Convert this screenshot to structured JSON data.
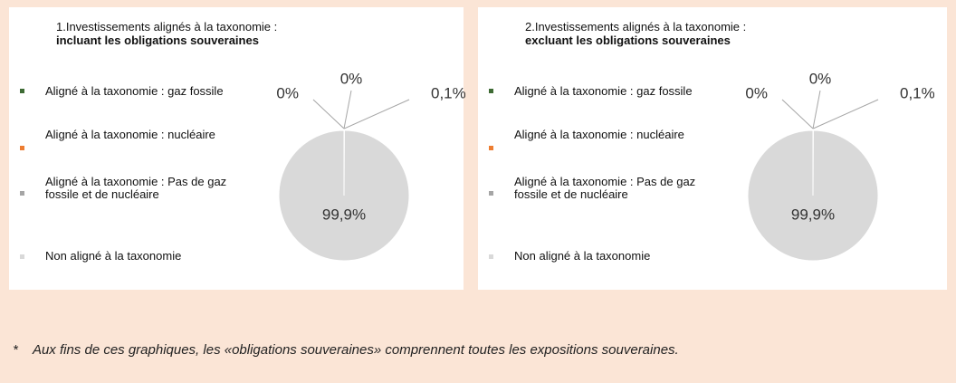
{
  "chart_data": [
    {
      "type": "pie",
      "title": "1.Investissements alignés à la taxonomie :",
      "subtitle": "incluant les obligations souveraines",
      "categories": [
        "Aligné à la taxonomie : gaz fossile",
        "Aligné à la taxonomie : nucléaire",
        "Aligné à la taxonomie : Pas de gaz fossile et de nucléaire",
        "Non aligné à la taxonomie"
      ],
      "values": [
        0,
        0,
        0.1,
        99.9
      ],
      "value_labels": [
        "0%",
        "0%",
        "0,1%",
        "99,9%"
      ],
      "colors": [
        "#3e6b34",
        "#ed7d31",
        "#a5a5a5",
        "#d9d9d9"
      ]
    },
    {
      "type": "pie",
      "title": "2.Investissements alignés à la taxonomie :",
      "subtitle": "excluant les obligations souveraines",
      "categories": [
        "Aligné à la taxonomie : gaz fossile",
        "Aligné à la taxonomie : nucléaire",
        "Aligné à la taxonomie : Pas de gaz fossile et de nucléaire",
        "Non aligné à la taxonomie"
      ],
      "values": [
        0,
        0,
        0.1,
        99.9
      ],
      "value_labels": [
        "0%",
        "0%",
        "0,1%",
        "99,9%"
      ],
      "colors": [
        "#3e6b34",
        "#ed7d31",
        "#a5a5a5",
        "#d9d9d9"
      ]
    }
  ],
  "footnote": "*    Aux fins de ces graphiques, les «obligations souveraines» comprennent toutes les expositions souveraines."
}
